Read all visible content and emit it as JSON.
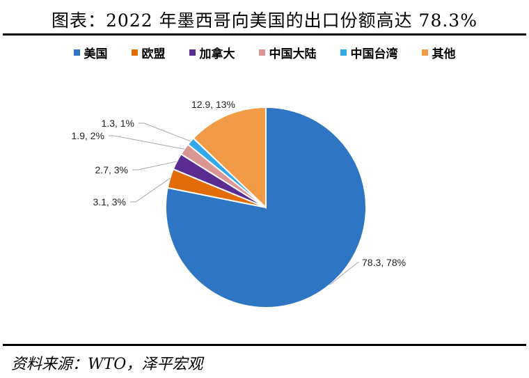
{
  "title": "图表：2022 年墨西哥向美国的出口份额高达 78.3%",
  "source": "资料来源：WTO，泽平宏观",
  "chart_data": {
    "type": "pie",
    "legend_position": "top",
    "slices": [
      {
        "name": "美国",
        "value": 78.3,
        "label": "78.3, 78%",
        "color": "#2E75C3"
      },
      {
        "name": "欧盟",
        "value": 3.1,
        "label": "3.1, 3%",
        "color": "#E36C0A"
      },
      {
        "name": "加拿大",
        "value": 2.7,
        "label": "2.7, 3%",
        "color": "#5B2C8F"
      },
      {
        "name": "中国大陆",
        "value": 1.9,
        "label": "1.9, 2%",
        "color": "#D99694"
      },
      {
        "name": "中国台湾",
        "value": 1.3,
        "label": "1.3, 1%",
        "color": "#33A9E8"
      },
      {
        "name": "其他",
        "value": 12.9,
        "label": "12.9, 13%",
        "color": "#F29B46"
      }
    ]
  }
}
